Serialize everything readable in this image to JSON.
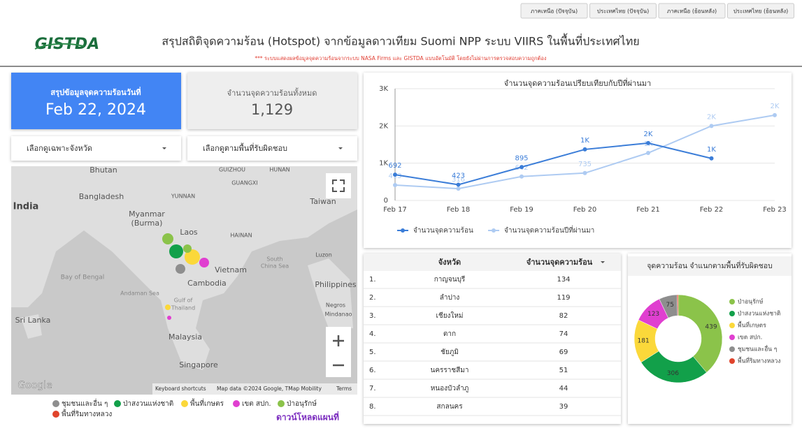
{
  "nav": [
    "ภาคเหนือ (ปัจจุบัน)",
    "ประเทศไทย (ปัจจุบัน)",
    "ภาคเหนือ (ย้อนหลัง)",
    "ประเทศไทย (ย้อนหลัง)"
  ],
  "header": {
    "logo": "GISTDA",
    "title": "สรุปสถิติจุดความร้อน (Hotspot) จากข้อมูลดาวเทียม Suomi NPP ระบบ VIIRS  ในพื้นที่ประเทศไทย",
    "note": "*** ระบบแสดงผลข้อมูลจุดความร้อนจากระบบ NASA Firms และ GISTDA แบบอัตโนมัติ โดยยังไม่ผ่านการตรวจสอบความถูกต้อง"
  },
  "cards": [
    {
      "label": "สรุปข้อมูลจุดความร้อนวันที่",
      "value": "Feb 22, 2024"
    },
    {
      "label": "จำนวนจุดความร้อนทั้งหมด",
      "value": "1,129"
    }
  ],
  "filters": [
    "เลือกดูเฉพาะจังหวัด",
    "เลือกดูตามพื้นที่รับผิดชอบ"
  ],
  "map": {
    "places": [
      "India",
      "Bhutan",
      "Bangladesh",
      "Myanmar",
      "(Burma)",
      "Laos",
      "Vietnam",
      "Cambodia",
      "HAINAN",
      "Taiwan",
      "YUNNAN",
      "GUIZHOU",
      "HUNAN",
      "GUANGXI",
      "Bay of Bengal",
      "Andaman Sea",
      "Gulf of",
      "Thailand",
      "South",
      "China Sea",
      "Philippines",
      "Luzon",
      "Negros",
      "Mindanao",
      "Sri Lanka",
      "Malaysia",
      "Singapore"
    ],
    "google": "Google",
    "attribution": [
      "Keyboard shortcuts",
      "Map data ©2024 Google, TMap Mobility",
      "Terms"
    ],
    "legend": [
      {
        "name": "ชุมชนและอื่น ๆ",
        "color": "#8e8e8e"
      },
      {
        "name": "ป่าสงวนแห่งชาติ",
        "color": "#12a04a"
      },
      {
        "name": "พื้นที่เกษตร",
        "color": "#fbd83a"
      },
      {
        "name": "เขต สปก.",
        "color": "#e03fd0"
      },
      {
        "name": "ป่าอนุรักษ์",
        "color": "#8bc34a"
      },
      {
        "name": "พื้นที่ริมทางหลวง",
        "color": "#e0442c"
      }
    ],
    "download": "ดาวน์โหลดแผนที่"
  },
  "chart_data": [
    {
      "type": "line",
      "title": "จำนวนจุดความร้อนเปรียบเทียบกับปีที่ผ่านมา",
      "categories": [
        "Feb 17",
        "Feb 18",
        "Feb 19",
        "Feb 20",
        "Feb 21",
        "Feb 22",
        "Feb 23"
      ],
      "ylim": [
        0,
        3000
      ],
      "yticks": [
        0,
        {
          "value": 1000,
          "label": "1K"
        },
        {
          "value": 2000,
          "label": "2K"
        },
        {
          "value": 3000,
          "label": "3K"
        }
      ],
      "grid": true,
      "series": [
        {
          "name": "จำนวนจุดความร้อน",
          "color": "#3b7dd8",
          "values": [
            692,
            423,
            895,
            1370,
            1540,
            1129,
            null
          ],
          "value_labels": [
            "692",
            "423",
            "895",
            "1K",
            "2K",
            "1K",
            null
          ]
        },
        {
          "name": "จำนวนจุดความร้อนปีที่ผ่านมา",
          "color": "#aecbf2",
          "values": [
            413,
            316,
            642,
            735,
            1275,
            2000,
            2290
          ],
          "value_labels": [
            "413",
            "316",
            "642",
            "735",
            "1K",
            "2K",
            "2K"
          ]
        }
      ]
    },
    {
      "type": "donut",
      "title": "จุดความร้อน จำแนกตามพื้นที่รับผิดชอบ",
      "categories": [
        "ป่าอนุรักษ์",
        "ป่าสงวนแห่งชาติ",
        "พื้นที่เกษตร",
        "เขต สปก.",
        "ชุมชนและอื่น ๆ",
        "พื้นที่ริมทางหลวง"
      ],
      "values": [
        439,
        306,
        181,
        123,
        75,
        5
      ],
      "colors": [
        "#8bc34a",
        "#12a04a",
        "#fbd83a",
        "#e03fd0",
        "#8e8e8e",
        "#e0442c"
      ]
    }
  ],
  "table": {
    "columns": [
      "จังหวัด",
      "จำนวนจุดความร้อน"
    ],
    "rows": [
      [
        "1.",
        "กาญจนบุรี",
        134
      ],
      [
        "2.",
        "ลำปาง",
        119
      ],
      [
        "3.",
        "เชียงใหม่",
        82
      ],
      [
        "4.",
        "ตาก",
        74
      ],
      [
        "5.",
        "ชัยภูมิ",
        69
      ],
      [
        "6.",
        "นครราชสีมา",
        51
      ],
      [
        "7.",
        "หนองบัวลำภู",
        44
      ],
      [
        "8.",
        "สกลนคร",
        39
      ]
    ]
  }
}
